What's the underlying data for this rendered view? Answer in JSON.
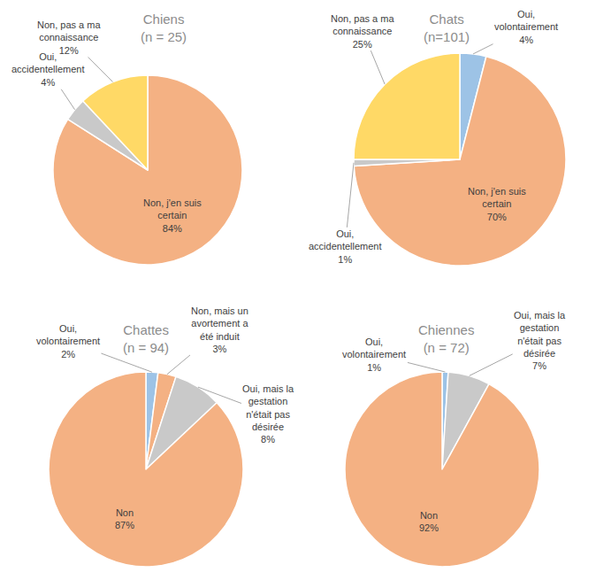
{
  "chart_data": [
    {
      "type": "pie",
      "title": "Chiens",
      "subtitle": "(n = 25)",
      "categories": [
        "Non, j'en suis certain",
        "Oui, accidentellement",
        "Non, pas a ma connaissance"
      ],
      "values": [
        84,
        4,
        12
      ],
      "value_labels": [
        "84%",
        "4%",
        "12%"
      ],
      "colors": [
        "#F4B183",
        "#C9C9C9",
        "#FFD966"
      ],
      "data_labels": true
    },
    {
      "type": "pie",
      "title": "Chats",
      "subtitle": "(n=101)",
      "categories": [
        "Oui, volontairement",
        "Non, j'en suis certain",
        "Oui, accidentellement",
        "Non, pas a ma connaissance"
      ],
      "values": [
        4,
        70,
        1,
        25
      ],
      "value_labels": [
        "4%",
        "70%",
        "1%",
        "25%"
      ],
      "colors": [
        "#9DC3E6",
        "#F4B183",
        "#C9C9C9",
        "#FFD966"
      ],
      "data_labels": true
    },
    {
      "type": "pie",
      "title": "Chattes",
      "subtitle": "(n = 94)",
      "categories": [
        "Oui, volontairement",
        "Non, mais un avortement a été induit",
        "Oui, mais la gestation n'était pas désirée",
        "Non"
      ],
      "values": [
        2,
        3,
        8,
        87
      ],
      "value_labels": [
        "2%",
        "3%",
        "8%",
        "87%"
      ],
      "colors": [
        "#9DC3E6",
        "#F4B183",
        "#C9C9C9",
        "#F4B183"
      ],
      "data_labels": true
    },
    {
      "type": "pie",
      "title": "Chiennes",
      "subtitle": "(n = 72)",
      "categories": [
        "Oui, volontairement",
        "Oui, mais la gestation n'était pas désirée",
        "Non"
      ],
      "values": [
        1,
        7,
        92
      ],
      "value_labels": [
        "1%",
        "7%",
        "92%"
      ],
      "colors": [
        "#9DC3E6",
        "#C9C9C9",
        "#F4B183"
      ],
      "data_labels": true
    }
  ]
}
